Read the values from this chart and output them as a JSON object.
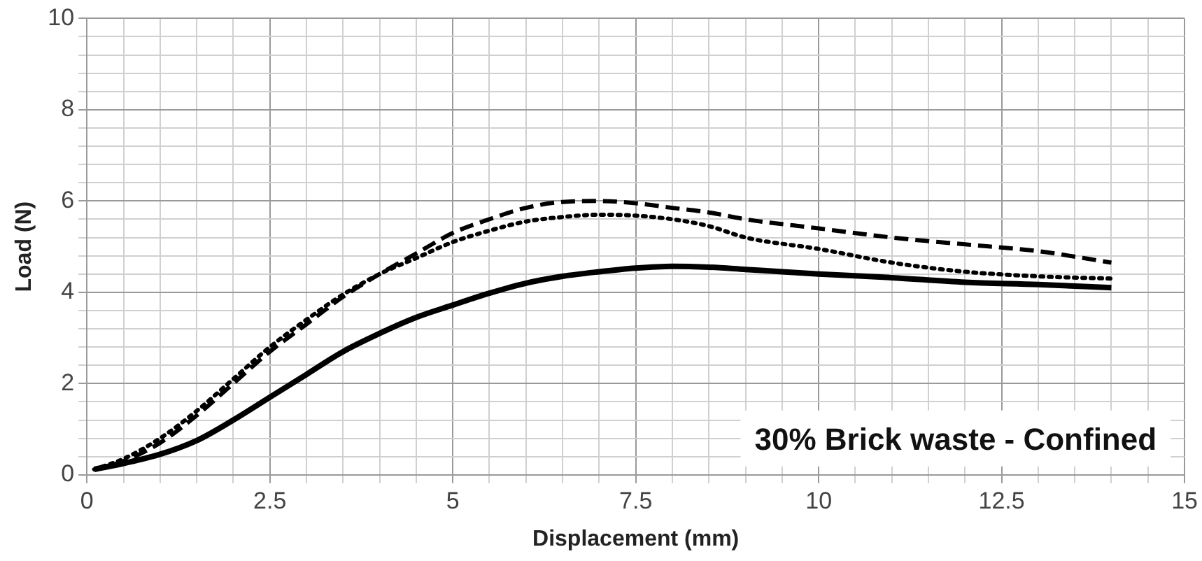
{
  "chart_data": {
    "type": "line",
    "xlabel": "Displacement (mm)",
    "ylabel": "Load (N)",
    "annotations": [
      "30% Brick waste - Confined"
    ],
    "grid": true,
    "legend": false,
    "marker": "none",
    "xlim": [
      0,
      15
    ],
    "ylim": [
      0,
      10
    ],
    "xticks": [
      0,
      {
        "value": 0.5,
        "label": null
      },
      {
        "value": 1,
        "label": null
      },
      {
        "value": 1.5,
        "label": null
      },
      {
        "value": 2,
        "label": null
      },
      2.5,
      {
        "value": 3,
        "label": null
      },
      {
        "value": 3.5,
        "label": null
      },
      {
        "value": 4,
        "label": null
      },
      {
        "value": 4.5,
        "label": null
      },
      5,
      {
        "value": 5.5,
        "label": null
      },
      {
        "value": 6,
        "label": null
      },
      {
        "value": 6.5,
        "label": null
      },
      {
        "value": 7,
        "label": null
      },
      7.5,
      {
        "value": 8,
        "label": null
      },
      {
        "value": 8.5,
        "label": null
      },
      {
        "value": 9,
        "label": null
      },
      {
        "value": 9.5,
        "label": null
      },
      10,
      {
        "value": 10.5,
        "label": null
      },
      {
        "value": 11,
        "label": null
      },
      {
        "value": 11.5,
        "label": null
      },
      {
        "value": 12,
        "label": null
      },
      12.5,
      {
        "value": 13,
        "label": null
      },
      {
        "value": 13.5,
        "label": null
      },
      {
        "value": 14,
        "label": null
      },
      {
        "value": 14.5,
        "label": null
      },
      15
    ],
    "yticks": [
      0,
      {
        "value": 0.4,
        "label": null
      },
      {
        "value": 0.8,
        "label": null
      },
      {
        "value": 1.2,
        "label": null
      },
      {
        "value": 1.6,
        "label": null
      },
      2,
      {
        "value": 2.4,
        "label": null
      },
      {
        "value": 2.8,
        "label": null
      },
      {
        "value": 3.2,
        "label": null
      },
      {
        "value": 3.6,
        "label": null
      },
      4,
      {
        "value": 4.4,
        "label": null
      },
      {
        "value": 4.8,
        "label": null
      },
      {
        "value": 5.2,
        "label": null
      },
      {
        "value": 5.6,
        "label": null
      },
      6,
      {
        "value": 6.4,
        "label": null
      },
      {
        "value": 6.8,
        "label": null
      },
      {
        "value": 7.2,
        "label": null
      },
      {
        "value": 7.6,
        "label": null
      },
      8,
      {
        "value": 8.4,
        "label": null
      },
      {
        "value": 8.8,
        "label": null
      },
      {
        "value": 9.2,
        "label": null
      },
      {
        "value": 9.6,
        "label": null
      },
      10
    ],
    "series": [
      {
        "color": "#000000",
        "line_style": "solid",
        "x": [
          0.1,
          0.5,
          1,
          1.5,
          2,
          2.5,
          3,
          3.5,
          4,
          4.5,
          5,
          5.5,
          6,
          6.5,
          7,
          7.5,
          8,
          8.5,
          9,
          9.5,
          10,
          11,
          12,
          13,
          14
        ],
        "values": [
          0.12,
          0.25,
          0.45,
          0.75,
          1.2,
          1.7,
          2.2,
          2.7,
          3.1,
          3.45,
          3.72,
          3.98,
          4.2,
          4.35,
          4.45,
          4.53,
          4.57,
          4.55,
          4.5,
          4.45,
          4.4,
          4.32,
          4.22,
          4.17,
          4.1
        ]
      },
      {
        "color": "#000000",
        "line_style": "dashed",
        "x": [
          0.1,
          0.5,
          1,
          1.5,
          2,
          2.5,
          3,
          3.5,
          4,
          4.5,
          5,
          5.5,
          6,
          6.5,
          7,
          7.5,
          8,
          8.5,
          9,
          10,
          11,
          12,
          13,
          14
        ],
        "values": [
          0.12,
          0.3,
          0.7,
          1.3,
          2.0,
          2.7,
          3.3,
          3.9,
          4.4,
          4.85,
          5.3,
          5.6,
          5.85,
          5.98,
          6.0,
          5.95,
          5.85,
          5.75,
          5.6,
          5.4,
          5.2,
          5.05,
          4.9,
          4.65
        ]
      },
      {
        "color": "#000000",
        "line_style": "dotted",
        "x": [
          0.1,
          0.5,
          1,
          1.5,
          2,
          2.5,
          3,
          3.5,
          4,
          4.5,
          5,
          5.5,
          6,
          6.5,
          7,
          7.5,
          8,
          8.5,
          9,
          10,
          11,
          12,
          13,
          14
        ],
        "values": [
          0.12,
          0.35,
          0.8,
          1.4,
          2.1,
          2.8,
          3.4,
          3.95,
          4.4,
          4.75,
          5.1,
          5.35,
          5.55,
          5.65,
          5.7,
          5.68,
          5.6,
          5.45,
          5.2,
          4.95,
          4.65,
          4.45,
          4.35,
          4.3
        ]
      }
    ]
  }
}
